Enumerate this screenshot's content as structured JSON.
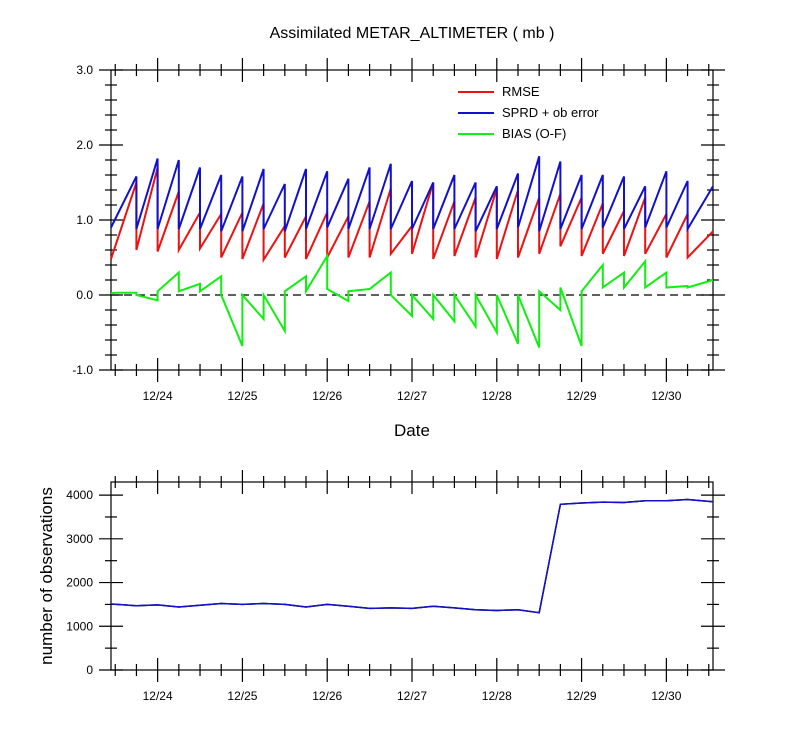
{
  "chart_data": [
    {
      "type": "line",
      "title": "Assimilated METAR_ALTIMETER ( mb )",
      "xlabel": "Date",
      "ylabel": "",
      "ylim": [
        -1.0,
        3.0
      ],
      "yticks": [
        "-1.0",
        "0.0",
        "1.0",
        "2.0",
        "3.0"
      ],
      "yticks_values": [
        -1.0,
        0.0,
        1.0,
        2.0,
        3.0
      ],
      "xlim": [
        23.45,
        30.55
      ],
      "xticks": [
        "12/24",
        "12/25",
        "12/26",
        "12/27",
        "12/28",
        "12/29",
        "12/30"
      ],
      "xticks_values": [
        24,
        25,
        26,
        27,
        28,
        29,
        30
      ],
      "zero_line": "dashed",
      "legend_position": "top-right",
      "series": [
        {
          "name": "RMSE",
          "color": "#ee1111",
          "points": [
            [
              23.45,
              0.48
            ],
            [
              23.75,
              1.5
            ],
            [
              23.75,
              0.6
            ],
            [
              24.0,
              1.7
            ],
            [
              24.0,
              0.58
            ],
            [
              24.25,
              1.38
            ],
            [
              24.25,
              0.6
            ],
            [
              24.5,
              1.1
            ],
            [
              24.5,
              0.62
            ],
            [
              24.75,
              1.08
            ],
            [
              24.75,
              0.5
            ],
            [
              25.0,
              1.1
            ],
            [
              25.0,
              0.48
            ],
            [
              25.25,
              1.22
            ],
            [
              25.25,
              0.47
            ],
            [
              25.5,
              0.92
            ],
            [
              25.5,
              0.5
            ],
            [
              25.75,
              1.05
            ],
            [
              25.75,
              0.48
            ],
            [
              26.0,
              1.1
            ],
            [
              26.0,
              0.5
            ],
            [
              26.25,
              1.05
            ],
            [
              26.25,
              0.5
            ],
            [
              26.5,
              1.25
            ],
            [
              26.5,
              0.5
            ],
            [
              26.75,
              1.42
            ],
            [
              26.75,
              0.55
            ],
            [
              27.0,
              0.92
            ],
            [
              27.0,
              0.55
            ],
            [
              27.25,
              1.5
            ],
            [
              27.25,
              0.48
            ],
            [
              27.5,
              1.25
            ],
            [
              27.5,
              0.52
            ],
            [
              27.75,
              1.3
            ],
            [
              27.75,
              0.5
            ],
            [
              28.0,
              1.42
            ],
            [
              28.0,
              0.48
            ],
            [
              28.25,
              1.4
            ],
            [
              28.25,
              0.5
            ],
            [
              28.5,
              1.3
            ],
            [
              28.5,
              0.55
            ],
            [
              28.75,
              1.35
            ],
            [
              28.75,
              0.65
            ],
            [
              29.0,
              1.3
            ],
            [
              29.0,
              0.52
            ],
            [
              29.25,
              1.22
            ],
            [
              29.25,
              0.55
            ],
            [
              29.5,
              1.12
            ],
            [
              29.5,
              0.52
            ],
            [
              29.75,
              1.3
            ],
            [
              29.75,
              0.55
            ],
            [
              30.0,
              1.08
            ],
            [
              30.0,
              0.5
            ],
            [
              30.25,
              1.08
            ],
            [
              30.25,
              0.5
            ],
            [
              30.55,
              0.85
            ]
          ]
        },
        {
          "name": "SPRD + ob error",
          "color": "#1111cc",
          "points": [
            [
              23.45,
              0.9
            ],
            [
              23.75,
              1.58
            ],
            [
              23.75,
              0.88
            ],
            [
              24.0,
              1.82
            ],
            [
              24.0,
              0.88
            ],
            [
              24.25,
              1.8
            ],
            [
              24.25,
              0.88
            ],
            [
              24.5,
              1.7
            ],
            [
              24.5,
              0.88
            ],
            [
              24.75,
              1.6
            ],
            [
              24.75,
              0.85
            ],
            [
              25.0,
              1.58
            ],
            [
              25.0,
              0.85
            ],
            [
              25.25,
              1.68
            ],
            [
              25.25,
              0.88
            ],
            [
              25.5,
              1.48
            ],
            [
              25.5,
              0.85
            ],
            [
              25.75,
              1.68
            ],
            [
              25.75,
              0.88
            ],
            [
              26.0,
              1.65
            ],
            [
              26.0,
              0.9
            ],
            [
              26.25,
              1.55
            ],
            [
              26.25,
              0.88
            ],
            [
              26.5,
              1.7
            ],
            [
              26.5,
              0.88
            ],
            [
              26.75,
              1.75
            ],
            [
              26.75,
              0.88
            ],
            [
              27.0,
              1.52
            ],
            [
              27.0,
              0.88
            ],
            [
              27.25,
              1.5
            ],
            [
              27.25,
              0.88
            ],
            [
              27.5,
              1.6
            ],
            [
              27.5,
              0.88
            ],
            [
              27.75,
              1.5
            ],
            [
              27.75,
              0.85
            ],
            [
              28.0,
              1.45
            ],
            [
              28.0,
              0.88
            ],
            [
              28.25,
              1.62
            ],
            [
              28.25,
              0.9
            ],
            [
              28.5,
              1.85
            ],
            [
              28.5,
              0.85
            ],
            [
              28.75,
              1.78
            ],
            [
              28.75,
              0.88
            ],
            [
              29.0,
              1.6
            ],
            [
              29.0,
              0.88
            ],
            [
              29.25,
              1.6
            ],
            [
              29.25,
              0.9
            ],
            [
              29.5,
              1.58
            ],
            [
              29.5,
              0.88
            ],
            [
              29.75,
              1.45
            ],
            [
              29.75,
              0.9
            ],
            [
              30.0,
              1.65
            ],
            [
              30.0,
              0.9
            ],
            [
              30.25,
              1.52
            ],
            [
              30.25,
              0.88
            ],
            [
              30.55,
              1.45
            ]
          ]
        },
        {
          "name": "BIAS (O-F)",
          "color": "#11ee11",
          "points": [
            [
              23.45,
              0.02
            ],
            [
              23.5,
              0.03
            ],
            [
              23.75,
              0.03
            ],
            [
              23.75,
              0.0
            ],
            [
              24.0,
              -0.07
            ],
            [
              24.0,
              0.05
            ],
            [
              24.25,
              0.3
            ],
            [
              24.25,
              0.05
            ],
            [
              24.5,
              0.15
            ],
            [
              24.5,
              0.05
            ],
            [
              24.75,
              0.25
            ],
            [
              24.75,
              0.0
            ],
            [
              25.0,
              -0.68
            ],
            [
              25.0,
              0.0
            ],
            [
              25.25,
              -0.32
            ],
            [
              25.25,
              0.0
            ],
            [
              25.5,
              -0.48
            ],
            [
              25.5,
              0.05
            ],
            [
              25.75,
              0.25
            ],
            [
              25.75,
              0.05
            ],
            [
              26.0,
              0.52
            ],
            [
              26.0,
              0.08
            ],
            [
              26.25,
              -0.08
            ],
            [
              26.25,
              0.05
            ],
            [
              26.5,
              0.08
            ],
            [
              26.5,
              0.08
            ],
            [
              26.75,
              0.3
            ],
            [
              26.75,
              0.0
            ],
            [
              27.0,
              -0.28
            ],
            [
              27.0,
              0.0
            ],
            [
              27.25,
              -0.32
            ],
            [
              27.25,
              0.0
            ],
            [
              27.5,
              -0.35
            ],
            [
              27.5,
              0.0
            ],
            [
              27.75,
              -0.42
            ],
            [
              27.75,
              0.0
            ],
            [
              28.0,
              -0.5
            ],
            [
              28.0,
              0.0
            ],
            [
              28.25,
              -0.65
            ],
            [
              28.25,
              0.0
            ],
            [
              28.5,
              -0.7
            ],
            [
              28.5,
              0.05
            ],
            [
              28.75,
              -0.2
            ],
            [
              28.75,
              0.1
            ],
            [
              29.0,
              -0.68
            ],
            [
              29.0,
              0.05
            ],
            [
              29.25,
              0.4
            ],
            [
              29.25,
              0.1
            ],
            [
              29.5,
              0.3
            ],
            [
              29.5,
              0.1
            ],
            [
              29.75,
              0.45
            ],
            [
              29.75,
              0.1
            ],
            [
              30.0,
              0.3
            ],
            [
              30.0,
              0.1
            ],
            [
              30.25,
              0.12
            ],
            [
              30.25,
              0.1
            ],
            [
              30.55,
              0.2
            ]
          ]
        }
      ]
    },
    {
      "type": "line",
      "title": "",
      "xlabel": "",
      "ylabel": "number of observations",
      "ylim": [
        0,
        4300
      ],
      "yticks": [
        "0",
        "1000",
        "2000",
        "3000",
        "4000"
      ],
      "yticks_values": [
        0,
        1000,
        2000,
        3000,
        4000
      ],
      "xlim": [
        23.45,
        30.55
      ],
      "xticks": [
        "12/24",
        "12/25",
        "12/26",
        "12/27",
        "12/28",
        "12/29",
        "12/30"
      ],
      "xticks_values": [
        24,
        25,
        26,
        27,
        28,
        29,
        30
      ],
      "series": [
        {
          "color": "#000000",
          "points": [
            [
              23.45,
              1510
            ],
            [
              23.75,
              1470
            ],
            [
              24.0,
              1490
            ],
            [
              24.25,
              1440
            ],
            [
              24.5,
              1480
            ],
            [
              24.75,
              1520
            ],
            [
              25.0,
              1500
            ],
            [
              25.25,
              1520
            ],
            [
              25.5,
              1500
            ],
            [
              25.75,
              1440
            ],
            [
              26.0,
              1500
            ],
            [
              26.25,
              1460
            ],
            [
              26.5,
              1410
            ],
            [
              26.75,
              1420
            ],
            [
              27.0,
              1410
            ],
            [
              27.25,
              1460
            ],
            [
              27.5,
              1420
            ],
            [
              27.75,
              1380
            ],
            [
              28.0,
              1360
            ],
            [
              28.25,
              1380
            ],
            [
              28.5,
              1310
            ],
            [
              28.75,
              3790
            ],
            [
              29.0,
              3820
            ],
            [
              29.25,
              3840
            ],
            [
              29.5,
              3830
            ],
            [
              29.75,
              3870
            ],
            [
              30.0,
              3870
            ],
            [
              30.25,
              3900
            ],
            [
              30.55,
              3850
            ]
          ]
        },
        {
          "color": "#1111cc",
          "points": [
            [
              23.45,
              1510
            ],
            [
              23.75,
              1470
            ],
            [
              24.0,
              1490
            ],
            [
              24.25,
              1440
            ],
            [
              24.5,
              1480
            ],
            [
              24.75,
              1520
            ],
            [
              25.0,
              1500
            ],
            [
              25.25,
              1520
            ],
            [
              25.5,
              1500
            ],
            [
              25.75,
              1440
            ],
            [
              26.0,
              1500
            ],
            [
              26.25,
              1460
            ],
            [
              26.5,
              1410
            ],
            [
              26.75,
              1420
            ],
            [
              27.0,
              1410
            ],
            [
              27.25,
              1460
            ],
            [
              27.5,
              1420
            ],
            [
              27.75,
              1380
            ],
            [
              28.0,
              1360
            ],
            [
              28.25,
              1380
            ],
            [
              28.5,
              1310
            ],
            [
              28.75,
              3790
            ],
            [
              29.0,
              3820
            ],
            [
              29.25,
              3840
            ],
            [
              29.5,
              3830
            ],
            [
              29.75,
              3870
            ],
            [
              30.0,
              3870
            ],
            [
              30.25,
              3900
            ],
            [
              30.55,
              3850
            ]
          ]
        }
      ]
    }
  ]
}
